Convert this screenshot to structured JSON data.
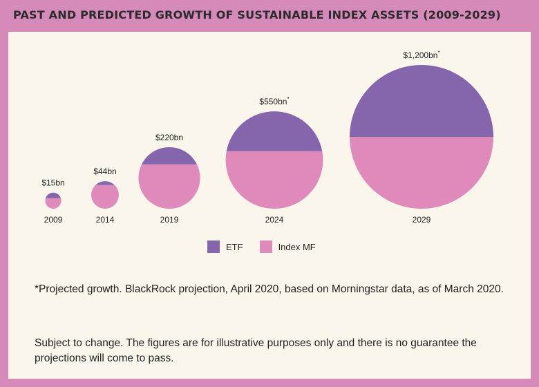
{
  "title": "PAST AND PREDICTED GROWTH OF SUSTAINABLE INDEX ASSETS (2009-2029)",
  "legend": [
    {
      "label": "ETF",
      "color": "#8566ad"
    },
    {
      "label": "Index MF",
      "color": "#df8abb"
    }
  ],
  "notes": {
    "projection": "*Projected growth. BlackRock projection, April 2020, based on Morningstar data, as of March 2020.",
    "disclaimer": "Subject to change. The figures are for illustrative purposes only and there is no guarantee the projections will come to pass."
  },
  "chart_data": {
    "type": "bubble",
    "x_title": "",
    "y_title": "",
    "series": [
      {
        "name": "ETF",
        "color": "#8566ad"
      },
      {
        "name": "Index MF",
        "color": "#df8abb"
      }
    ],
    "points": [
      {
        "year": "2009",
        "label": "$15bn",
        "total_bn": 15,
        "projected": false,
        "etf_share": 0.35
      },
      {
        "year": "2014",
        "label": "$44bn",
        "total_bn": 44,
        "projected": false,
        "etf_share": 0.14
      },
      {
        "year": "2019",
        "label": "$220bn",
        "total_bn": 220,
        "projected": false,
        "etf_share": 0.28
      },
      {
        "year": "2024",
        "label": "$550bn",
        "total_bn": 550,
        "projected": true,
        "etf_share": 0.41
      },
      {
        "year": "2029",
        "label": "$1,200bn",
        "total_bn": 1200,
        "projected": true,
        "etf_share": 0.5
      }
    ]
  }
}
